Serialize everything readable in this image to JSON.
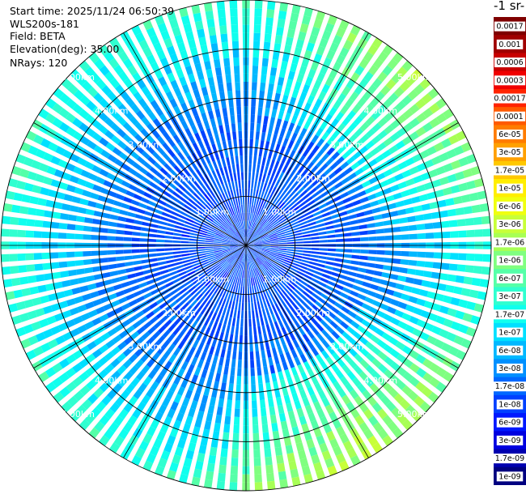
{
  "header": {
    "start_time": "Start time: 2025/11/24 06:50:39",
    "device": "WLS200s-181",
    "field": "Field: BETA",
    "elevation": "Elevation(deg): 35.00",
    "nrays": "NRays: 120"
  },
  "colorbar": {
    "title": "-1 sr-",
    "labels": [
      "0.0017",
      "0.001",
      "0.0006",
      "0.0003",
      "0.00017",
      "0.0001",
      "6e-05",
      "3e-05",
      "1.7e-05",
      "1e-05",
      "6e-06",
      "3e-06",
      "1.7e-06",
      "1e-06",
      "6e-07",
      "3e-07",
      "1.7e-07",
      "1e-07",
      "6e-08",
      "3e-08",
      "1.7e-08",
      "1e-08",
      "6e-09",
      "3e-09",
      "1.7e-09",
      "1e-09"
    ],
    "colors": [
      "#7f0000",
      "#a00000",
      "#c80000",
      "#f00000",
      "#ff2400",
      "#ff5a00",
      "#ff7c00",
      "#ffa000",
      "#ffc800",
      "#ffee00",
      "#f0ff10",
      "#c8ff38",
      "#a8ff55",
      "#80ff80",
      "#55ffa8",
      "#30ffd0",
      "#10ffee",
      "#00e0ff",
      "#00b8ff",
      "#0090ff",
      "#0068ff",
      "#0040ff",
      "#0018ff",
      "#0000e0",
      "#0000b0",
      "#000080"
    ]
  },
  "chart_data": {
    "type": "ppi",
    "nrays": 120,
    "elevation_deg": 35.0,
    "field": "BETA",
    "range_unit": "km",
    "range_rings_km": [
      1,
      2,
      3,
      4,
      5
    ],
    "range_labels": [
      "1.00km",
      "2.00km",
      "3.00km",
      "4.00km",
      "5.00km"
    ],
    "max_range_km": 5.0,
    "color_scale": "log",
    "value_range": [
      1e-09,
      0.0017
    ],
    "radial_profile": [
      {
        "range_km": 0.0,
        "beta": 1.2e-08
      },
      {
        "range_km": 1.0,
        "beta": 1.2e-08
      },
      {
        "range_km": 2.0,
        "beta": 1.5e-08
      },
      {
        "range_km": 3.0,
        "beta": 3e-08
      },
      {
        "range_km": 3.5,
        "beta": 6e-08
      },
      {
        "range_km": 4.0,
        "beta": 1e-07
      },
      {
        "range_km": 4.5,
        "beta": 2e-07
      },
      {
        "range_km": 5.0,
        "beta": 3e-07
      }
    ],
    "azimuth_enhancement": [
      {
        "azimuth_deg": 45,
        "beta_factor": 6
      },
      {
        "azimuth_deg": 150,
        "beta_factor": 8
      }
    ]
  }
}
